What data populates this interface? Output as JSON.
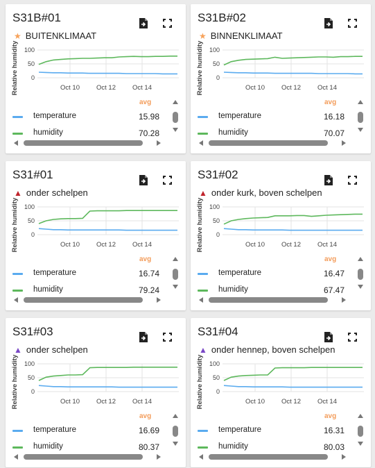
{
  "colors": {
    "temperature": "#5aabef",
    "humidity": "#5db85c",
    "avg_label": "#f39c5a",
    "star": "#f7a25a",
    "triangle_red": "#c0242c",
    "triangle_purple": "#7a48c6",
    "grid": "#e3e3e3",
    "axis_text": "#444"
  },
  "common": {
    "ylabel": "Relative humidity",
    "yticks": [
      "100",
      "50",
      "0"
    ],
    "xticks": [
      "Oct 10",
      "Oct 12",
      "Oct 14"
    ],
    "avg_label": "avg",
    "legend_names": [
      "temperature",
      "humidity"
    ],
    "icons": {
      "file": "file-export-icon",
      "fullscreen": "fullscreen-icon"
    }
  },
  "cards": [
    {
      "title": "S31B#01",
      "subtitle": "BUITENKLIMAAT",
      "marker": "star",
      "temperature_avg": "15.98",
      "humidity_avg": "70.28",
      "chart_data": {
        "type": "line",
        "ylabel": "Relative humidity",
        "ylim": [
          0,
          100
        ],
        "xticks": [
          "Oct 10",
          "Oct 12",
          "Oct 14"
        ],
        "series": [
          {
            "name": "temperature",
            "values": [
              20,
              19,
              18,
              18,
              17,
              17,
              17,
              16,
              16,
              16,
              16,
              16,
              15,
              15,
              15,
              15,
              15,
              14,
              14,
              14
            ]
          },
          {
            "name": "humidity",
            "values": [
              48,
              58,
              64,
              66,
              68,
              69,
              70,
              70,
              71,
              72,
              72,
              75,
              76,
              77,
              76,
              76,
              77,
              77,
              78,
              78
            ]
          }
        ]
      }
    },
    {
      "title": "S31B#02",
      "subtitle": "BINNENKLIMAAT",
      "marker": "star",
      "temperature_avg": "16.18",
      "humidity_avg": "70.07",
      "chart_data": {
        "type": "line",
        "ylabel": "Relative humidity",
        "ylim": [
          0,
          100
        ],
        "xticks": [
          "Oct 10",
          "Oct 12",
          "Oct 14"
        ],
        "series": [
          {
            "name": "temperature",
            "values": [
              20,
              19,
              18,
              18,
              17,
              17,
              17,
              16,
              16,
              16,
              16,
              16,
              16,
              15,
              15,
              15,
              15,
              15,
              14,
              14
            ]
          },
          {
            "name": "humidity",
            "values": [
              46,
              58,
              63,
              66,
              67,
              68,
              69,
              74,
              70,
              71,
              72,
              73,
              74,
              75,
              75,
              74,
              76,
              76,
              77,
              77
            ]
          }
        ]
      }
    },
    {
      "title": "S31#01",
      "subtitle": "onder schelpen",
      "marker": "triangle_red",
      "temperature_avg": "16.74",
      "humidity_avg": "79.24",
      "chart_data": {
        "type": "line",
        "ylabel": "Relative humidity",
        "ylim": [
          0,
          100
        ],
        "xticks": [
          "Oct 10",
          "Oct 12",
          "Oct 14"
        ],
        "series": [
          {
            "name": "temperature",
            "values": [
              22,
              20,
              18,
              18,
              17,
              17,
              17,
              17,
              17,
              17,
              17,
              17,
              16,
              16,
              16,
              16,
              16,
              16,
              16,
              16
            ]
          },
          {
            "name": "humidity",
            "values": [
              40,
              50,
              55,
              57,
              58,
              58,
              59,
              85,
              86,
              86,
              86,
              86,
              87,
              87,
              87,
              87,
              87,
              87,
              87,
              87
            ]
          }
        ]
      }
    },
    {
      "title": "S31#02",
      "subtitle": "onder kurk, boven schelpen",
      "marker": "triangle_red",
      "temperature_avg": "16.47",
      "humidity_avg": "67.47",
      "chart_data": {
        "type": "line",
        "ylabel": "Relative humidity",
        "ylim": [
          0,
          100
        ],
        "xticks": [
          "Oct 10",
          "Oct 12",
          "Oct 14"
        ],
        "series": [
          {
            "name": "temperature",
            "values": [
              22,
              20,
              18,
              18,
              17,
              17,
              17,
              17,
              17,
              16,
              16,
              16,
              16,
              16,
              16,
              16,
              16,
              16,
              16,
              16
            ]
          },
          {
            "name": "humidity",
            "values": [
              38,
              50,
              55,
              58,
              60,
              61,
              62,
              68,
              68,
              68,
              69,
              69,
              66,
              68,
              70,
              71,
              72,
              73,
              74,
              74
            ]
          }
        ]
      }
    },
    {
      "title": "S31#03",
      "subtitle": "onder schelpen",
      "marker": "triangle_purple",
      "temperature_avg": "16.69",
      "humidity_avg": "80.37",
      "chart_data": {
        "type": "line",
        "ylabel": "Relative humidity",
        "ylim": [
          0,
          100
        ],
        "xticks": [
          "Oct 10",
          "Oct 12",
          "Oct 14"
        ],
        "series": [
          {
            "name": "temperature",
            "values": [
              22,
              20,
              18,
              18,
              17,
              17,
              17,
              17,
              17,
              17,
              17,
              16,
              16,
              16,
              16,
              16,
              16,
              16,
              16,
              16
            ]
          },
          {
            "name": "humidity",
            "values": [
              40,
              52,
              56,
              58,
              60,
              60,
              61,
              86,
              87,
              87,
              87,
              87,
              87,
              88,
              88,
              88,
              88,
              88,
              88,
              88
            ]
          }
        ]
      }
    },
    {
      "title": "S31#04",
      "subtitle": "onder hennep, boven schelpen",
      "marker": "triangle_purple",
      "temperature_avg": "16.31",
      "humidity_avg": "80.03",
      "chart_data": {
        "type": "line",
        "ylabel": "Relative humidity",
        "ylim": [
          0,
          100
        ],
        "xticks": [
          "Oct 10",
          "Oct 12",
          "Oct 14"
        ],
        "series": [
          {
            "name": "temperature",
            "values": [
              22,
              20,
              18,
              18,
              17,
              17,
              17,
              17,
              17,
              16,
              16,
              16,
              16,
              16,
              16,
              16,
              16,
              16,
              16,
              16
            ]
          },
          {
            "name": "humidity",
            "values": [
              40,
              52,
              56,
              58,
              59,
              60,
              60,
              85,
              86,
              86,
              86,
              86,
              87,
              87,
              87,
              87,
              87,
              87,
              87,
              87
            ]
          }
        ]
      }
    }
  ]
}
